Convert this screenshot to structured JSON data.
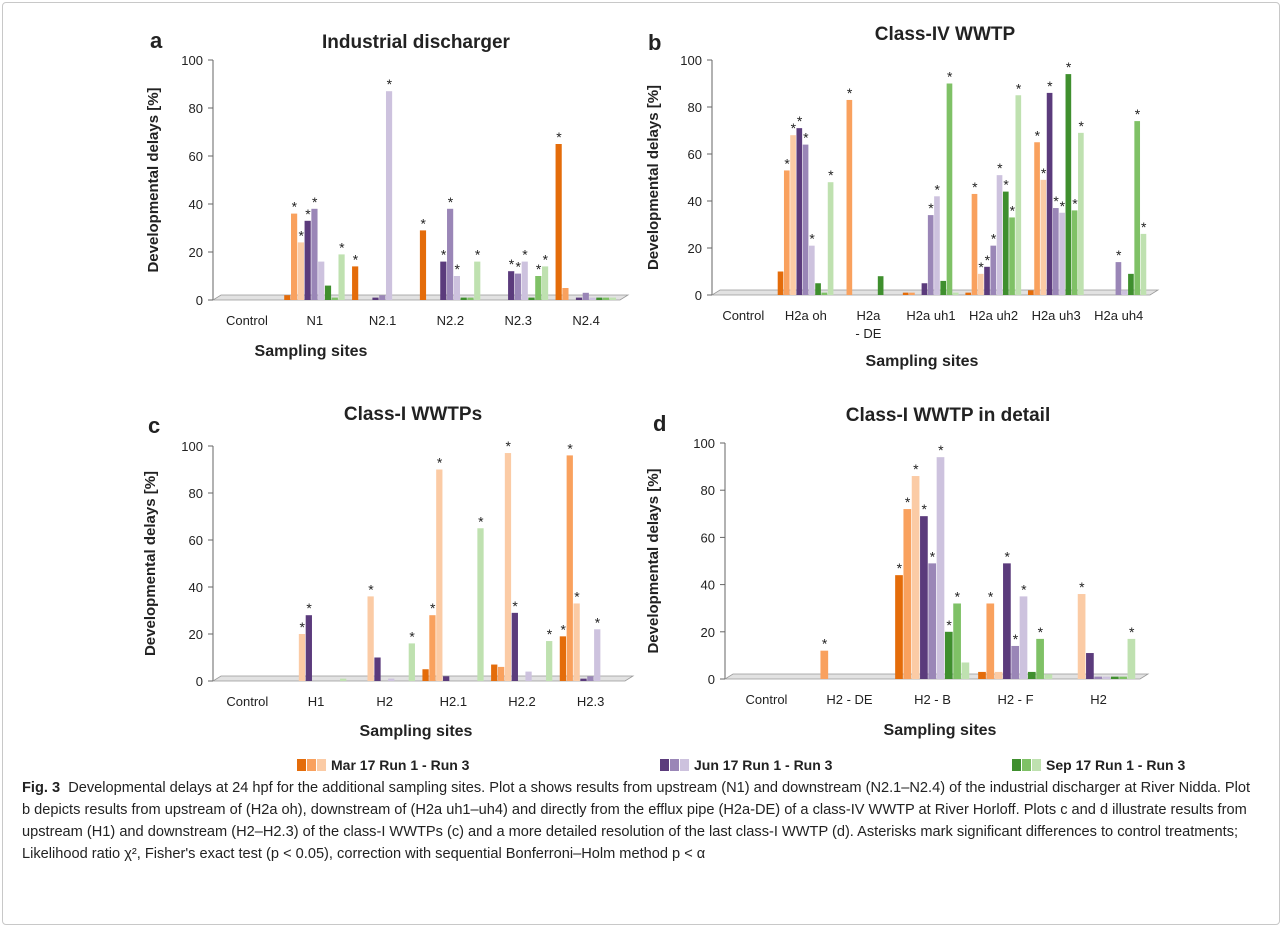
{
  "legend": {
    "groups": [
      {
        "label": "Mar 17  Run 1 - Run 3",
        "colors": [
          "#e46c0a",
          "#f9a15e",
          "#fbcba5"
        ]
      },
      {
        "label": "Jun 17  Run 1 - Run 3",
        "colors": [
          "#5b3b7c",
          "#9a86b7",
          "#cdc2de"
        ]
      },
      {
        "label": "Sep 17  Run 1 - Run 3",
        "colors": [
          "#3f8f2e",
          "#7fc166",
          "#bfe1b0"
        ]
      }
    ]
  },
  "caption": {
    "fig_label": "Fig. 3",
    "text": "Developmental delays at 24 hpf for the additional sampling sites. Plot a shows results from upstream (N1) and downstream (N2.1–N2.4) of the industrial discharger at River Nidda. Plot b depicts results from upstream of (H2a oh), downstream of (H2a uh1–uh4) and directly from the efflux pipe (H2a-DE) of a class-IV WWTP at River Horloff. Plots c and d illustrate results from upstream (H1) and downstream (H2–H2.3) of the class-I WWTPs (c) and a more detailed resolution of the last class-I WWTP (d). Asterisks mark significant differences to control treatments; Likelihood ratio χ², Fisher's exact test (p < 0.05), correction with sequential Bonferroni–Holm method p < α"
  },
  "chart_data": [
    {
      "panel": "a",
      "type": "bar",
      "title": "Industrial discharger",
      "xlabel": "Sampling sites",
      "ylabel": "Developmental delays [%]",
      "ylim": [
        0,
        100
      ],
      "yticks": [
        0,
        20,
        40,
        60,
        80,
        100
      ],
      "categories": [
        "Control",
        "N1",
        "N2.1",
        "N2.2",
        "N2.3",
        "N2.4"
      ],
      "series": [
        {
          "name": "Mar 17 Run 1",
          "values": [
            0,
            2,
            14,
            29,
            0,
            65
          ],
          "sig": [
            0,
            0,
            1,
            1,
            0,
            1
          ]
        },
        {
          "name": "Mar 17 Run 2",
          "values": [
            0,
            36,
            0,
            0,
            0,
            5
          ],
          "sig": [
            0,
            1,
            0,
            0,
            0,
            0
          ]
        },
        {
          "name": "Mar 17 Run 3",
          "values": [
            0,
            24,
            0,
            0,
            0,
            0
          ],
          "sig": [
            0,
            1,
            0,
            0,
            0,
            0
          ]
        },
        {
          "name": "Jun 17 Run 1",
          "values": [
            0,
            33,
            1,
            16,
            12,
            1
          ],
          "sig": [
            0,
            1,
            0,
            1,
            1,
            0
          ]
        },
        {
          "name": "Jun 17 Run 2",
          "values": [
            0,
            38,
            2,
            38,
            11,
            3
          ],
          "sig": [
            0,
            1,
            0,
            1,
            1,
            0
          ]
        },
        {
          "name": "Jun 17 Run 3",
          "values": [
            0,
            16,
            87,
            10,
            16,
            1
          ],
          "sig": [
            0,
            0,
            1,
            1,
            1,
            0
          ]
        },
        {
          "name": "Sep 17 Run 1",
          "values": [
            0,
            6,
            0,
            1,
            1,
            1
          ],
          "sig": [
            0,
            0,
            0,
            0,
            0,
            0
          ]
        },
        {
          "name": "Sep 17 Run 2",
          "values": [
            0,
            1,
            0,
            1,
            10,
            1
          ],
          "sig": [
            0,
            0,
            0,
            0,
            1,
            0
          ]
        },
        {
          "name": "Sep 17 Run 3",
          "values": [
            0,
            19,
            0,
            16,
            14,
            1
          ],
          "sig": [
            0,
            1,
            0,
            1,
            1,
            0
          ]
        }
      ]
    },
    {
      "panel": "b",
      "type": "bar",
      "title": "Class-IV WWTP",
      "xlabel": "Sampling sites",
      "ylabel": "Developmental delays [%]",
      "ylim": [
        0,
        100
      ],
      "yticks": [
        0,
        20,
        40,
        60,
        80,
        100
      ],
      "categories": [
        "Control",
        "H2a oh",
        "H2a - DE",
        "H2a uh1",
        "H2a uh2",
        "H2a uh3",
        "H2a uh4"
      ],
      "series": [
        {
          "name": "Mar 17 Run 1",
          "values": [
            0,
            10,
            0,
            1,
            1,
            2,
            0
          ],
          "sig": [
            0,
            0,
            0,
            0,
            0,
            0,
            0
          ]
        },
        {
          "name": "Mar 17 Run 2",
          "values": [
            0,
            53,
            83,
            1,
            43,
            65,
            0
          ],
          "sig": [
            0,
            1,
            1,
            0,
            1,
            1,
            0
          ]
        },
        {
          "name": "Mar 17 Run 3",
          "values": [
            0,
            68,
            0,
            0,
            9,
            49,
            0
          ],
          "sig": [
            0,
            1,
            0,
            0,
            1,
            1,
            0
          ]
        },
        {
          "name": "Jun 17 Run 1",
          "values": [
            0,
            71,
            0,
            5,
            12,
            86,
            0
          ],
          "sig": [
            0,
            1,
            0,
            0,
            1,
            1,
            0
          ]
        },
        {
          "name": "Jun 17 Run 2",
          "values": [
            0,
            64,
            0,
            34,
            21,
            37,
            14
          ],
          "sig": [
            0,
            1,
            0,
            1,
            1,
            1,
            1
          ]
        },
        {
          "name": "Jun 17 Run 3",
          "values": [
            0,
            21,
            0,
            42,
            51,
            35,
            2
          ],
          "sig": [
            0,
            1,
            0,
            1,
            1,
            1,
            0
          ]
        },
        {
          "name": "Sep 17 Run 1",
          "values": [
            0,
            5,
            8,
            6,
            44,
            94,
            9
          ],
          "sig": [
            0,
            0,
            0,
            0,
            1,
            1,
            0
          ]
        },
        {
          "name": "Sep 17 Run 2",
          "values": [
            0,
            1,
            0,
            90,
            33,
            36,
            74
          ],
          "sig": [
            0,
            0,
            0,
            1,
            1,
            1,
            1
          ]
        },
        {
          "name": "Sep 17 Run 3",
          "values": [
            0,
            48,
            0,
            1,
            85,
            69,
            26
          ],
          "sig": [
            0,
            1,
            0,
            0,
            1,
            1,
            1
          ]
        }
      ]
    },
    {
      "panel": "c",
      "type": "bar",
      "title": "Class-I WWTPs",
      "xlabel": "Sampling sites",
      "ylabel": "Developmental delays [%]",
      "ylim": [
        0,
        100
      ],
      "yticks": [
        0,
        20,
        40,
        60,
        80,
        100
      ],
      "categories": [
        "Control",
        "H1",
        "H2",
        "H2.1",
        "H2.2",
        "H2.3"
      ],
      "series": [
        {
          "name": "Mar 17 Run 1",
          "values": [
            0,
            0,
            0,
            5,
            7,
            19
          ],
          "sig": [
            0,
            0,
            0,
            0,
            0,
            1
          ]
        },
        {
          "name": "Mar 17 Run 2",
          "values": [
            0,
            0,
            0,
            28,
            6,
            96
          ],
          "sig": [
            0,
            0,
            0,
            1,
            0,
            1
          ]
        },
        {
          "name": "Mar 17 Run 3",
          "values": [
            0,
            20,
            36,
            90,
            97,
            33
          ],
          "sig": [
            0,
            1,
            1,
            1,
            1,
            1
          ]
        },
        {
          "name": "Jun 17 Run 1",
          "values": [
            0,
            28,
            10,
            2,
            29,
            1
          ],
          "sig": [
            0,
            1,
            0,
            0,
            1,
            0
          ]
        },
        {
          "name": "Jun 17 Run 2",
          "values": [
            0,
            0,
            0,
            0,
            0,
            2
          ],
          "sig": [
            0,
            0,
            0,
            0,
            0,
            0
          ]
        },
        {
          "name": "Jun 17 Run 3",
          "values": [
            0,
            0,
            1,
            0,
            4,
            22
          ],
          "sig": [
            0,
            0,
            0,
            0,
            0,
            1
          ]
        },
        {
          "name": "Sep 17 Run 1",
          "values": [
            0,
            0,
            0,
            0,
            0,
            0
          ],
          "sig": [
            0,
            0,
            0,
            0,
            0,
            0
          ]
        },
        {
          "name": "Sep 17 Run 2",
          "values": [
            0,
            0,
            0,
            0,
            0,
            0
          ],
          "sig": [
            0,
            0,
            0,
            0,
            0,
            0
          ]
        },
        {
          "name": "Sep 17 Run 3",
          "values": [
            0,
            1,
            16,
            65,
            17,
            0
          ],
          "sig": [
            0,
            0,
            1,
            1,
            1,
            0
          ]
        }
      ]
    },
    {
      "panel": "d",
      "type": "bar",
      "title": "Class-I WWTP in detail",
      "xlabel": "Sampling sites",
      "ylabel": "Developmental delays [%]",
      "ylim": [
        0,
        100
      ],
      "yticks": [
        0,
        20,
        40,
        60,
        80,
        100
      ],
      "categories": [
        "Control",
        "H2 - DE",
        "H2 - B",
        "H2 - F",
        "H2"
      ],
      "series": [
        {
          "name": "Mar 17 Run 1",
          "values": [
            0,
            0,
            44,
            3,
            0
          ],
          "sig": [
            0,
            0,
            1,
            0,
            0
          ]
        },
        {
          "name": "Mar 17 Run 2",
          "values": [
            0,
            12,
            72,
            32,
            0
          ],
          "sig": [
            0,
            1,
            1,
            1,
            0
          ]
        },
        {
          "name": "Mar 17 Run 3",
          "values": [
            0,
            0,
            86,
            3,
            36
          ],
          "sig": [
            0,
            0,
            1,
            0,
            1
          ]
        },
        {
          "name": "Jun 17 Run 1",
          "values": [
            0,
            0,
            69,
            49,
            11
          ],
          "sig": [
            0,
            0,
            1,
            1,
            0
          ]
        },
        {
          "name": "Jun 17 Run 2",
          "values": [
            0,
            0,
            49,
            14,
            1
          ],
          "sig": [
            0,
            0,
            1,
            1,
            0
          ]
        },
        {
          "name": "Jun 17 Run 3",
          "values": [
            0,
            0,
            94,
            35,
            1
          ],
          "sig": [
            0,
            0,
            1,
            1,
            0
          ]
        },
        {
          "name": "Sep 17 Run 1",
          "values": [
            0,
            0,
            20,
            3,
            1
          ],
          "sig": [
            0,
            0,
            1,
            0,
            0
          ]
        },
        {
          "name": "Sep 17 Run 2",
          "values": [
            0,
            0,
            32,
            17,
            1
          ],
          "sig": [
            0,
            0,
            1,
            1,
            0
          ]
        },
        {
          "name": "Sep 17 Run 3",
          "values": [
            0,
            0,
            7,
            2,
            17
          ],
          "sig": [
            0,
            0,
            0,
            0,
            1
          ]
        }
      ]
    }
  ]
}
